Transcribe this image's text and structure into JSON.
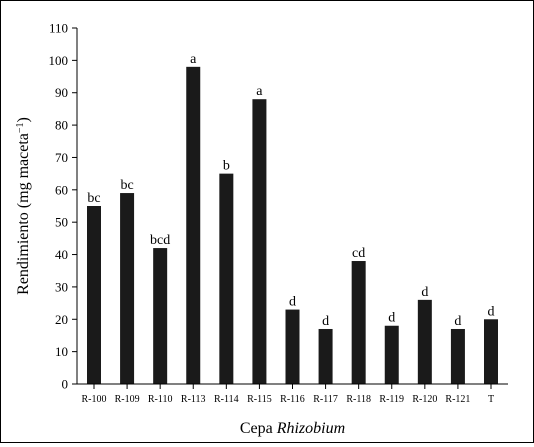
{
  "chart_data": {
    "type": "bar",
    "categories": [
      "R-100",
      "R-109",
      "R-110",
      "R-113",
      "R-114",
      "R-115",
      "R-116",
      "R-117",
      "R-118",
      "R-119",
      "R-120",
      "R-121",
      "T"
    ],
    "values": [
      55,
      59,
      42,
      98,
      65,
      88,
      23,
      17,
      38,
      18,
      26,
      17,
      20
    ],
    "annotations": [
      "bc",
      "bc",
      "bcd",
      "a",
      "b",
      "a",
      "d",
      "d",
      "cd",
      "d",
      "d",
      "d",
      "d"
    ],
    "xlabel": {
      "prefix": "Cepa ",
      "italic": "Rhizobium"
    },
    "ylabel": {
      "main": "Rendimiento (mg maceta",
      "superscript": "−1",
      "close": ")"
    },
    "ylim": [
      0,
      110
    ],
    "yticks": [
      0,
      10,
      20,
      30,
      40,
      50,
      60,
      70,
      80,
      90,
      100,
      110
    ],
    "bar_color": "#1a1a1a",
    "grid": false,
    "legend": "none"
  }
}
